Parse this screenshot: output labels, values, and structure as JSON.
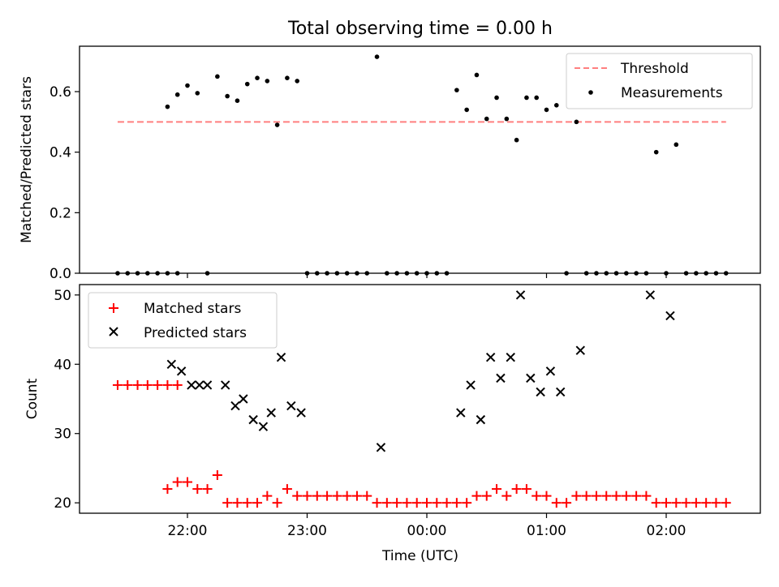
{
  "title": "Total observing time = 0.00 h",
  "xlabel": "Time (UTC)",
  "x_ticks": [
    "22:00",
    "23:00",
    "00:00",
    "01:00",
    "02:00"
  ],
  "chart_data": [
    {
      "type": "scatter",
      "ylabel": "Matched/Predicted stars",
      "ylim": [
        0.0,
        0.75
      ],
      "y_ticks": [
        "0.0",
        "0.2",
        "0.4",
        "0.6"
      ],
      "y_tick_values": [
        0.0,
        0.2,
        0.4,
        0.6
      ],
      "legend_placement": "upper-right",
      "series": [
        {
          "name": "Threshold",
          "style": "dashed-line",
          "color": "#ff7f7f",
          "x": [
            "21:25",
            "02:30"
          ],
          "y": [
            0.5,
            0.5
          ]
        },
        {
          "name": "Measurements",
          "style": "dot",
          "color": "#000000",
          "x": [
            "21:25",
            "21:30",
            "21:35",
            "21:40",
            "21:45",
            "21:50",
            "21:55",
            "21:50",
            "21:55",
            "22:00",
            "22:05",
            "22:10",
            "22:15",
            "22:20",
            "22:25",
            "22:30",
            "22:35",
            "22:40",
            "22:45",
            "22:50",
            "22:55",
            "23:00",
            "23:05",
            "23:10",
            "23:15",
            "23:20",
            "23:25",
            "23:30",
            "23:35",
            "23:40",
            "23:45",
            "23:50",
            "23:55",
            "00:00",
            "00:05",
            "00:10",
            "00:15",
            "00:20",
            "00:25",
            "00:30",
            "00:35",
            "00:40",
            "00:45",
            "00:50",
            "00:55",
            "01:00",
            "01:05",
            "01:10",
            "01:15",
            "01:20",
            "01:25",
            "01:30",
            "01:35",
            "01:40",
            "01:45",
            "01:50",
            "01:55",
            "02:00",
            "02:05",
            "02:10",
            "02:15",
            "02:20",
            "02:25",
            "02:30"
          ],
          "y": [
            0,
            0,
            0,
            0,
            0,
            0,
            0,
            0.55,
            0.59,
            0.62,
            0.595,
            0,
            0.65,
            0.585,
            0.57,
            0.625,
            0.645,
            0.635,
            0.49,
            0.645,
            0.635,
            0,
            0,
            0,
            0,
            0,
            0,
            0,
            0.715,
            0,
            0,
            0,
            0,
            0,
            0,
            0,
            0.605,
            0.54,
            0.655,
            0.51,
            0.58,
            0.51,
            0.44,
            0.58,
            0.58,
            0.54,
            0.555,
            0,
            0.5,
            0,
            0,
            0,
            0,
            0,
            0,
            0,
            0.4,
            0,
            0.425,
            0,
            0,
            0,
            0,
            0
          ]
        }
      ]
    },
    {
      "type": "scatter",
      "ylabel": "Count",
      "ylim": [
        18.5,
        51.5
      ],
      "y_ticks": [
        "20",
        "30",
        "40",
        "50"
      ],
      "y_tick_values": [
        20,
        30,
        40,
        50
      ],
      "legend_placement": "upper-left",
      "series": [
        {
          "name": "Matched stars",
          "style": "plus",
          "color": "#ff0000",
          "x": [
            "21:25",
            "21:30",
            "21:35",
            "21:40",
            "21:45",
            "21:50",
            "21:55",
            "21:50",
            "21:55",
            "22:00",
            "22:05",
            "22:10",
            "22:15",
            "22:20",
            "22:25",
            "22:30",
            "22:35",
            "22:40",
            "22:45",
            "22:50",
            "22:55",
            "23:00",
            "23:05",
            "23:10",
            "23:15",
            "23:20",
            "23:25",
            "23:30",
            "23:35",
            "23:40",
            "23:45",
            "23:50",
            "23:55",
            "00:00",
            "00:05",
            "00:10",
            "00:15",
            "00:20",
            "00:25",
            "00:30",
            "00:35",
            "00:40",
            "00:45",
            "00:50",
            "00:55",
            "01:00",
            "01:05",
            "01:10",
            "01:15",
            "01:20",
            "01:25",
            "01:30",
            "01:35",
            "01:40",
            "01:45",
            "01:50",
            "01:55",
            "02:00",
            "02:05",
            "02:10",
            "02:15",
            "02:20",
            "02:25",
            "02:30"
          ],
          "y": [
            37,
            37,
            37,
            37,
            37,
            37,
            37,
            22,
            23,
            23,
            22,
            22,
            24,
            20,
            20,
            20,
            20,
            21,
            20,
            22,
            21,
            21,
            21,
            21,
            21,
            21,
            21,
            21,
            20,
            20,
            20,
            20,
            20,
            20,
            20,
            20,
            20,
            20,
            21,
            21,
            22,
            21,
            22,
            22,
            21,
            21,
            20,
            20,
            21,
            21,
            21,
            21,
            21,
            21,
            21,
            21,
            20,
            20,
            20,
            20,
            20,
            20,
            20,
            20
          ]
        },
        {
          "name": "Predicted stars",
          "style": "x",
          "color": "#000000",
          "x": [
            "21:52",
            "21:57",
            "22:02",
            "22:06",
            "22:10",
            "22:19",
            "22:24",
            "22:28",
            "22:33",
            "22:38",
            "22:42",
            "22:47",
            "22:52",
            "22:57",
            "23:37",
            "00:17",
            "00:22",
            "00:27",
            "00:32",
            "00:37",
            "00:42",
            "00:47",
            "00:52",
            "00:57",
            "01:02",
            "01:07",
            "01:17",
            "01:52",
            "02:02"
          ],
          "y": [
            40,
            39,
            37,
            37,
            37,
            37,
            34,
            35,
            32,
            31,
            33,
            41,
            34,
            33,
            28,
            33,
            37,
            32,
            41,
            38,
            41,
            50,
            38,
            36,
            39,
            36,
            42,
            50,
            47
          ]
        }
      ]
    }
  ]
}
